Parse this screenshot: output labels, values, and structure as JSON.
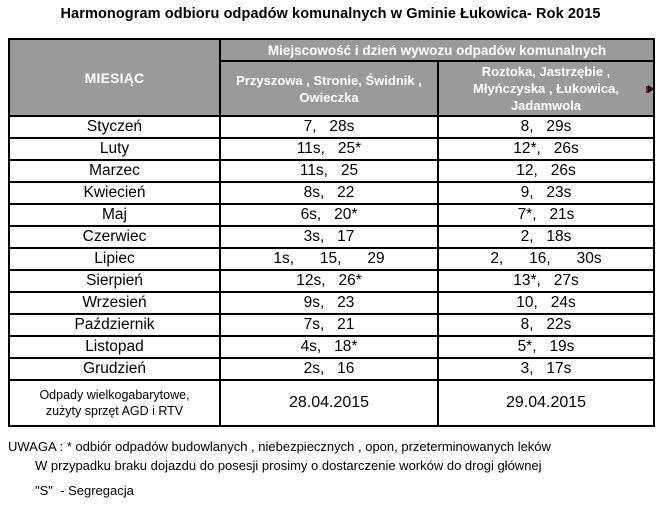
{
  "title": "Harmonogram odbioru odpadów komunalnych w Gminie Łukowica- Rok 2015",
  "table": {
    "month_header": "MIESIĄC",
    "group_header": "Miejscowość i dzień wywozu odpadów komunalnych",
    "columns": [
      {
        "lines": [
          "Przyszowa , Stronie, Świdnik ,",
          "Owieczka"
        ]
      },
      {
        "lines": [
          "Roztoka, Jastrzębie ,",
          "Młyńczyska , Łukowica,",
          "Jadamwola"
        ]
      }
    ],
    "rows": [
      {
        "month": "Styczeń",
        "zone1": "7,   28s",
        "zone2": "8,   29s"
      },
      {
        "month": "Luty",
        "zone1": "11s,   25*",
        "zone2": "12*,   26s"
      },
      {
        "month": "Marzec",
        "zone1": "11s,   25",
        "zone2": "12,   26s"
      },
      {
        "month": "Kwiecień",
        "zone1": "8s,   22",
        "zone2": "9,   23s"
      },
      {
        "month": "Maj",
        "zone1": "6s,   20*",
        "zone2": "7*,   21s"
      },
      {
        "month": "Czerwiec",
        "zone1": "3s,   17",
        "zone2": "2,   18s"
      },
      {
        "month": "Lipiec",
        "zone1": "1s,      15,      29",
        "zone2": "2,      16,      30s"
      },
      {
        "month": "Sierpień",
        "zone1": "12s,   26*",
        "zone2": "13*,   27s"
      },
      {
        "month": "Wrzesień",
        "zone1": "9s,   23",
        "zone2": "10,   24s"
      },
      {
        "month": "Październik",
        "zone1": "7s,   21",
        "zone2": "8,   22s"
      },
      {
        "month": "Listopad",
        "zone1": "4s,   18*",
        "zone2": "5*,   19s"
      },
      {
        "month": "Grudzień",
        "zone1": "2s,   16",
        "zone2": "3,   17s"
      }
    ],
    "special": {
      "label_lines": [
        "Odpady wielkogabarytowe,",
        "zużyty sprzęt AGD i RTV"
      ],
      "date1": "28.04.2015",
      "date2": "29.04.2015"
    }
  },
  "notes": [
    "UWAGA : * odbiór odpadów budowlanych , niebezpiecznych , opon, przeterminowanych leków",
    "W przypadku braku dojazdu do posesji prosimy o dostarczenie worków do drogi głównej",
    "\"S\"  - Segregacja"
  ],
  "colors": {
    "header_bg": "#9a9a9a",
    "header_text": "#ffffff",
    "border": "#000000",
    "text": "#000000",
    "cursor_red": "#7e1f1f"
  }
}
